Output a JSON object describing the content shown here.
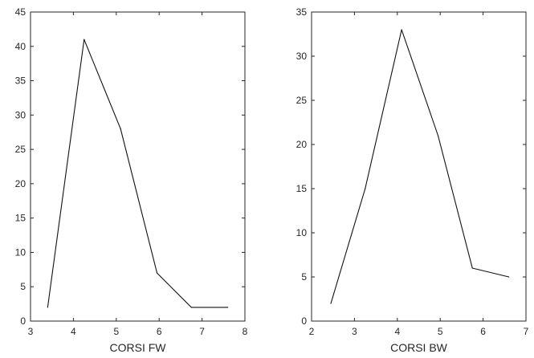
{
  "colors": {
    "line": "#111111",
    "axis": "#262626",
    "background": "#ffffff"
  },
  "chart_data": [
    {
      "type": "line",
      "title": "",
      "xlabel": "CORSI FW",
      "ylabel": "",
      "xlim": [
        3,
        8
      ],
      "ylim": [
        0,
        45
      ],
      "xticks": [
        3,
        4,
        5,
        6,
        7,
        8
      ],
      "yticks": [
        0,
        5,
        10,
        15,
        20,
        25,
        30,
        35,
        40,
        45
      ],
      "grid": false,
      "series": [
        {
          "x": [
            3.4,
            4.25,
            5.1,
            5.95,
            6.75,
            7.6
          ],
          "y": [
            2,
            41,
            28,
            7,
            2,
            2
          ]
        }
      ]
    },
    {
      "type": "line",
      "title": "",
      "xlabel": "CORSI BW",
      "ylabel": "",
      "xlim": [
        2,
        7
      ],
      "ylim": [
        0,
        35
      ],
      "xticks": [
        2,
        3,
        4,
        5,
        6,
        7
      ],
      "yticks": [
        0,
        5,
        10,
        15,
        20,
        25,
        30,
        35
      ],
      "grid": false,
      "series": [
        {
          "x": [
            2.45,
            3.25,
            4.1,
            4.95,
            5.75,
            6.6
          ],
          "y": [
            2,
            15,
            33,
            21,
            6,
            5
          ]
        }
      ]
    }
  ]
}
